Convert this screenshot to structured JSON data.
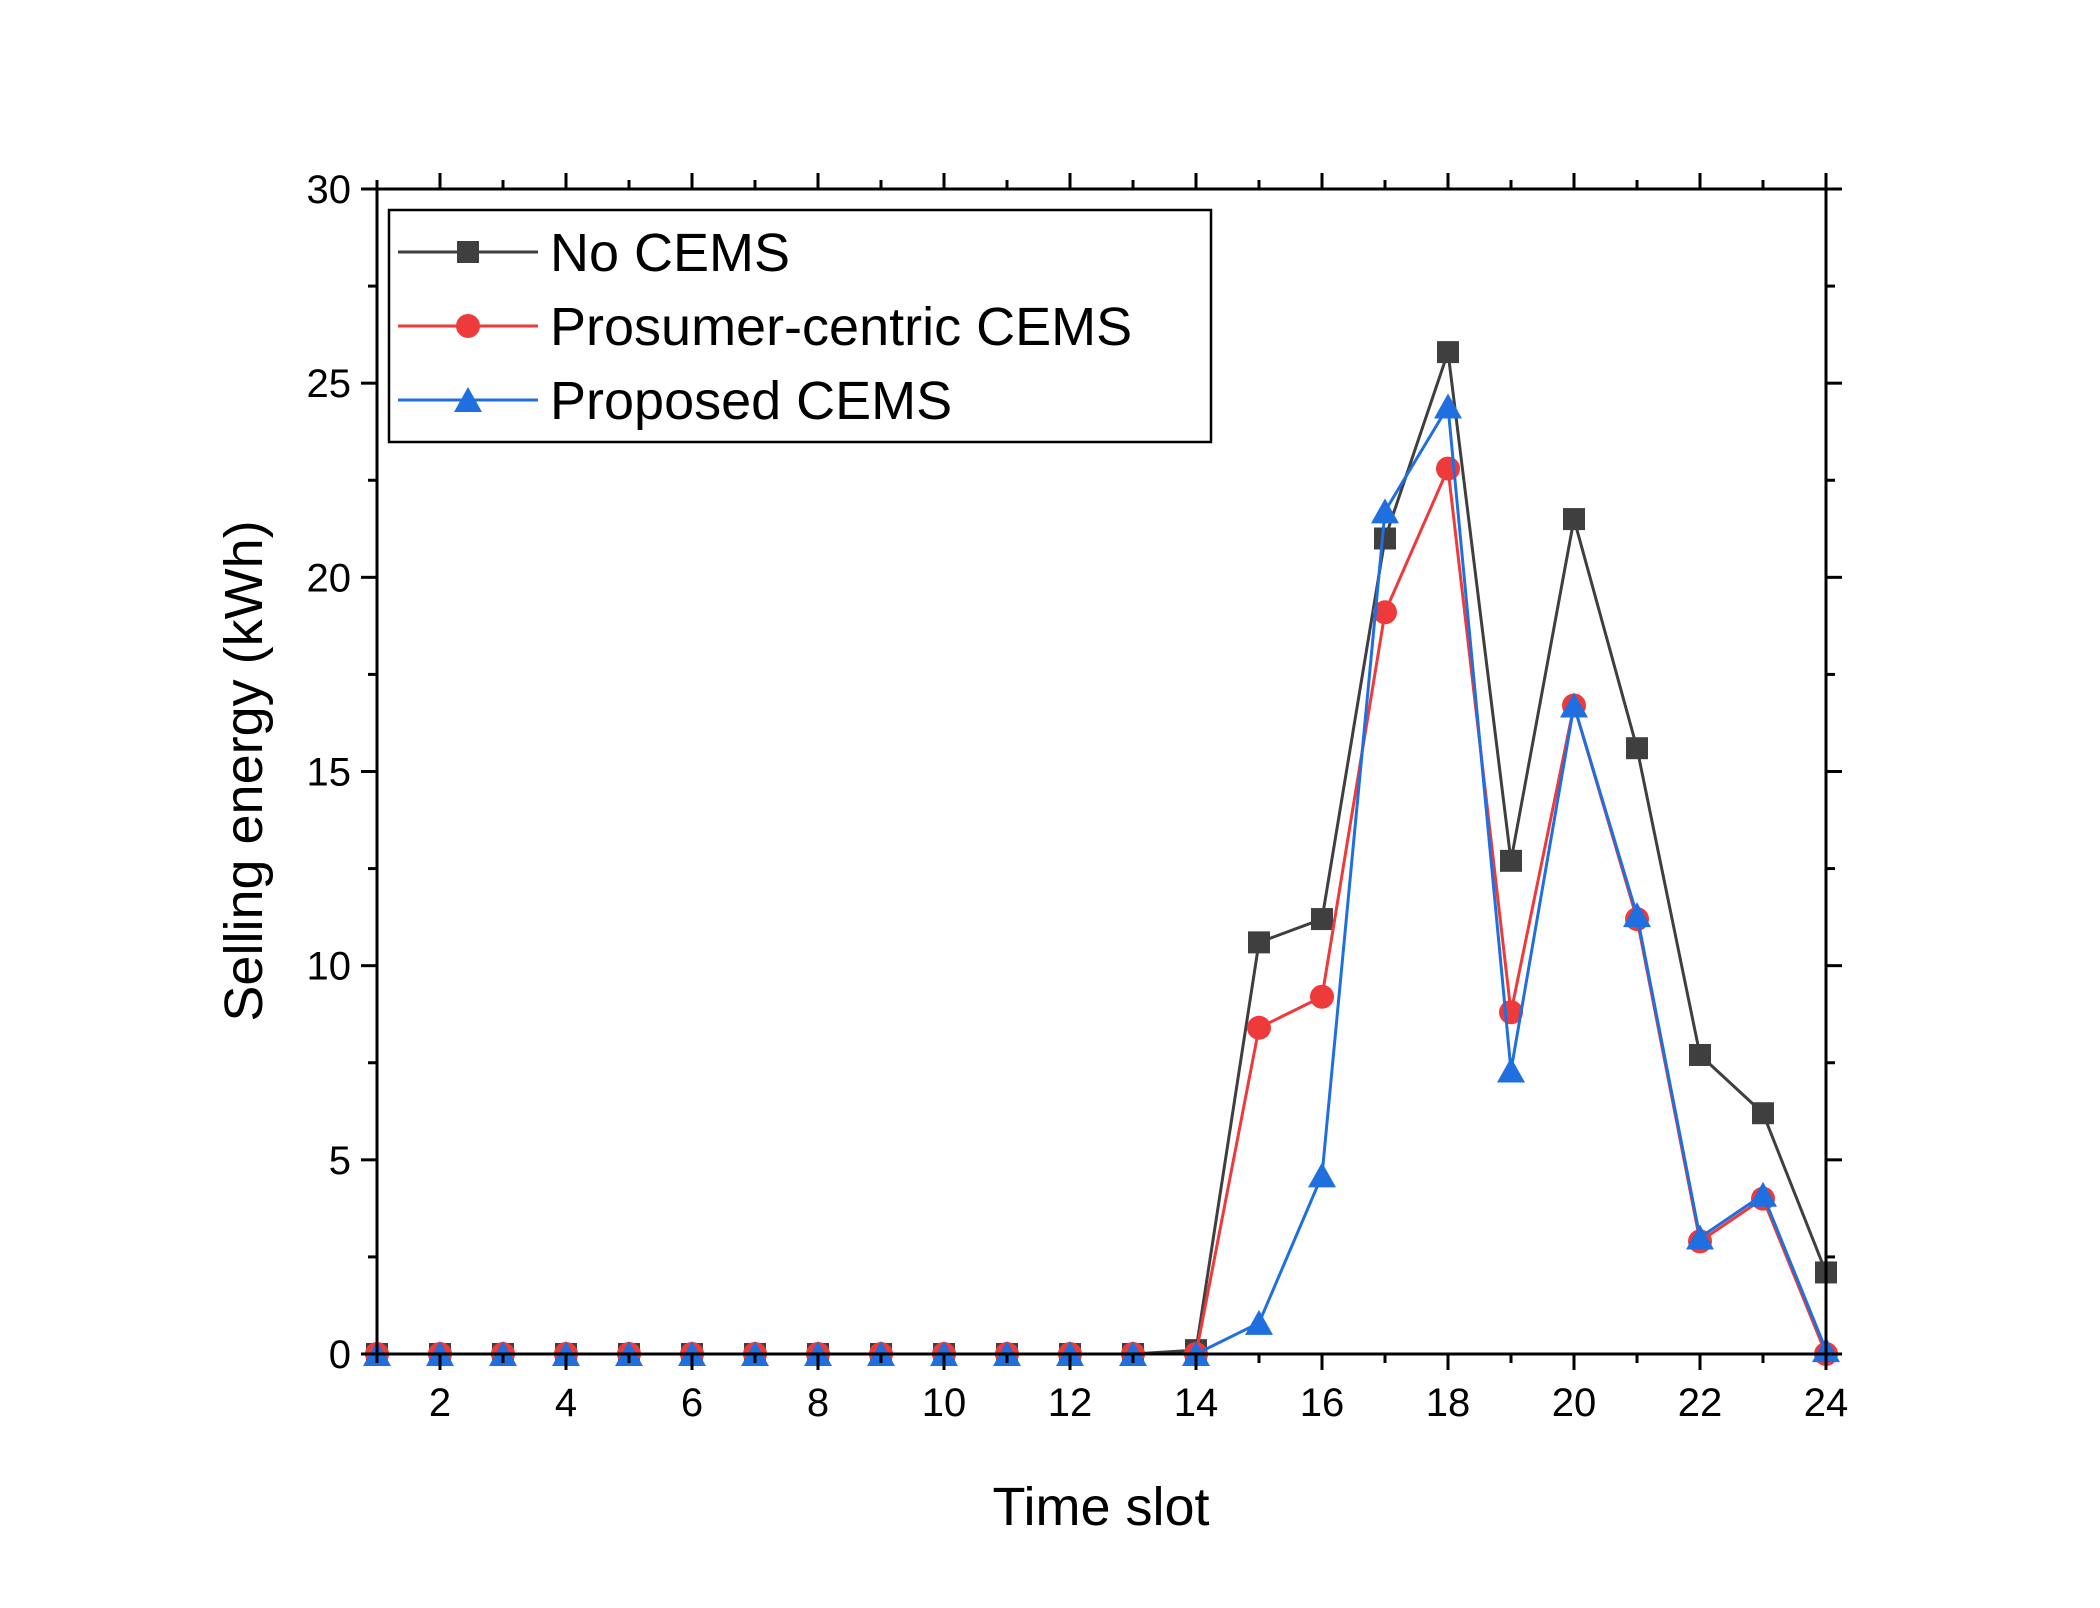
{
  "chart_data": {
    "type": "line",
    "title": "",
    "xlabel": "Time slot",
    "ylabel": "Selling energy (kWh)",
    "xlim": [
      1,
      24
    ],
    "ylim": [
      0,
      30
    ],
    "x": [
      1,
      2,
      3,
      4,
      5,
      6,
      7,
      8,
      9,
      10,
      11,
      12,
      13,
      14,
      15,
      16,
      17,
      18,
      19,
      20,
      21,
      22,
      23,
      24
    ],
    "xticks": [
      2,
      4,
      6,
      8,
      10,
      12,
      14,
      16,
      18,
      20,
      22,
      24
    ],
    "yticks": [
      0,
      5,
      10,
      15,
      20,
      25,
      30
    ],
    "grid": false,
    "legend_position": "top-left",
    "series": [
      {
        "name": "No CEMS",
        "color": "#3f3f3f",
        "marker": "square",
        "values": [
          0,
          0,
          0,
          0,
          0,
          0,
          0,
          0,
          0,
          0,
          0,
          0,
          0,
          0.1,
          10.6,
          11.2,
          21.0,
          25.8,
          12.7,
          21.5,
          15.6,
          7.7,
          6.2,
          2.1
        ]
      },
      {
        "name": "Prosumer-centric CEMS",
        "color": "#ee3a3a",
        "marker": "circle",
        "values": [
          0,
          0,
          0,
          0,
          0,
          0,
          0,
          0,
          0,
          0,
          0,
          0,
          0,
          0,
          8.4,
          9.2,
          19.1,
          22.8,
          8.8,
          16.7,
          11.2,
          2.9,
          4.0,
          0
        ]
      },
      {
        "name": "Proposed CEMS",
        "color": "#1f6fe0",
        "marker": "triangle",
        "values": [
          0,
          0,
          0,
          0,
          0,
          0,
          0,
          0,
          0,
          0,
          0,
          0,
          0,
          0,
          0.8,
          4.6,
          21.7,
          24.4,
          7.3,
          16.7,
          11.3,
          3.0,
          4.1,
          0.1
        ]
      }
    ]
  }
}
